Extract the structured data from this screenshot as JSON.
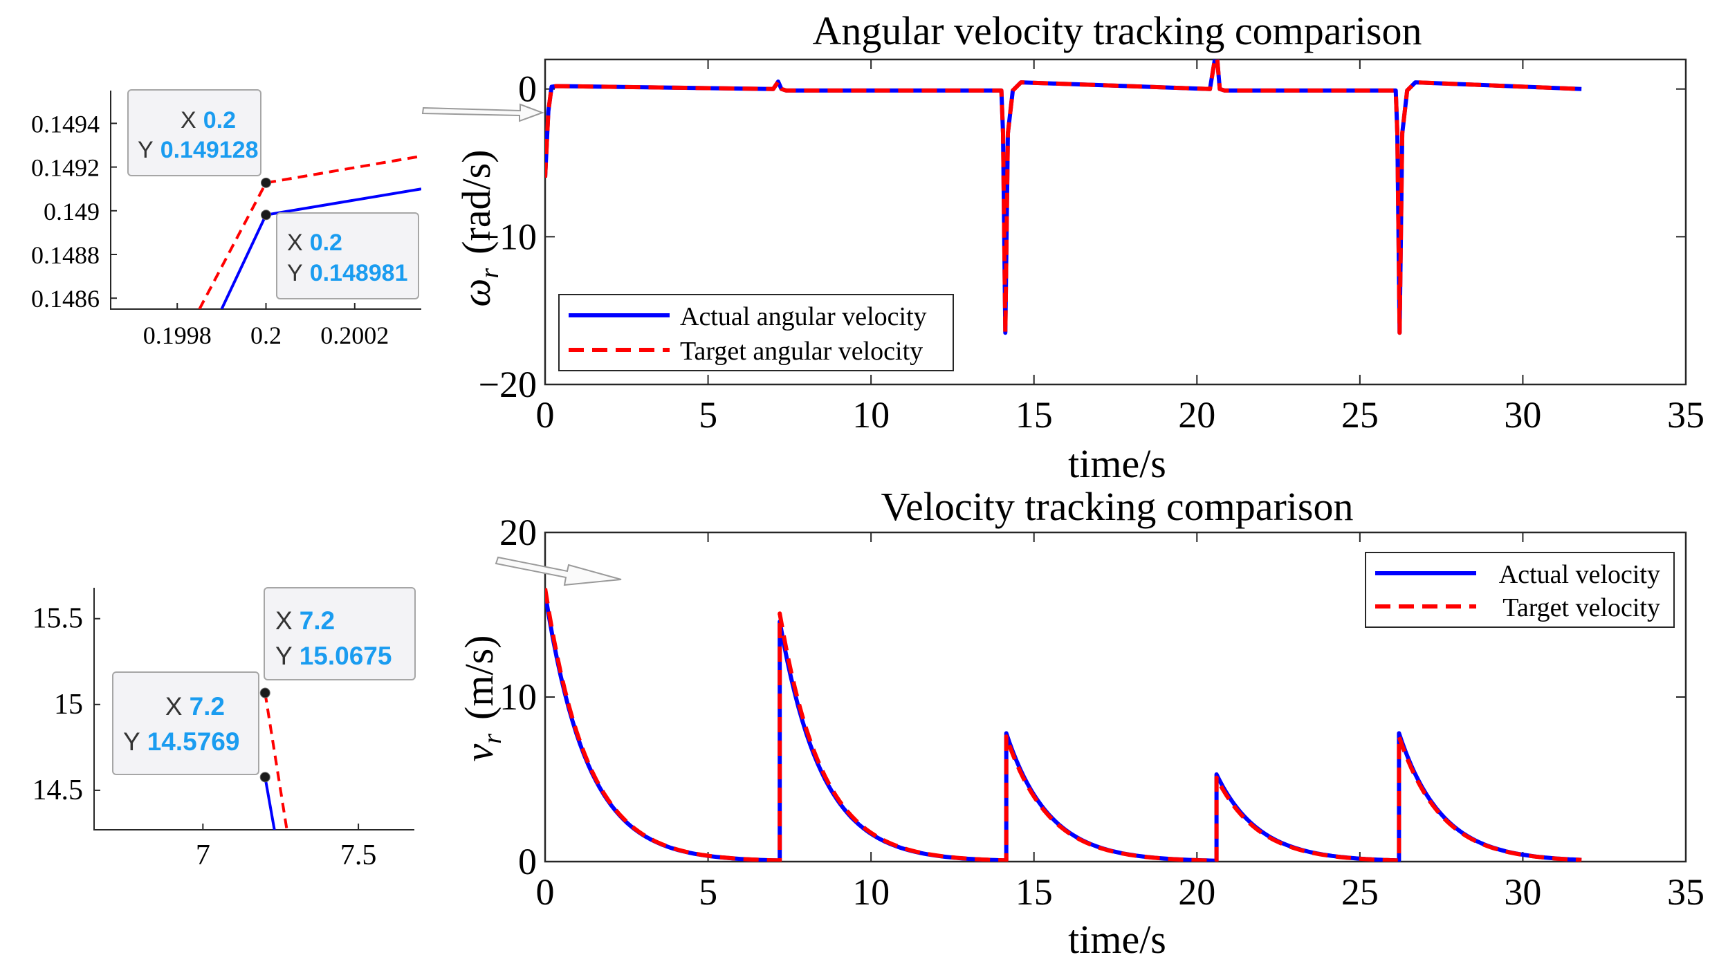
{
  "colors": {
    "actual": "#0000ff",
    "target": "#ff0000",
    "tip_value": "#1a9cf0",
    "axis": "#262626",
    "tip_bg": "#f3f3f6",
    "tip_border": "#a6a6a6"
  },
  "chart_data": [
    {
      "id": "angular",
      "type": "line",
      "title": "Angular velocity tracking comparison",
      "xlabel": "time/s",
      "ylabel_symbol": "ω",
      "ylabel_sub": "r",
      "ylabel_unit": "(rad/s)",
      "xlim": [
        0,
        35
      ],
      "ylim": [
        -20,
        2
      ],
      "xticks": [
        0,
        5,
        10,
        15,
        20,
        25,
        30,
        35
      ],
      "xtick_labels": [
        "0",
        "5",
        "10",
        "15",
        "20",
        "25",
        "30",
        "35"
      ],
      "yticks": [
        -20,
        -10,
        0
      ],
      "ytick_labels": [
        "−20",
        "−10",
        "0"
      ],
      "legend_position": "bottom-left",
      "series": [
        {
          "name": "Actual angular velocity",
          "style": "solid",
          "x": [
            0,
            0.1,
            0.2,
            0.35,
            7.0,
            7.15,
            7.25,
            7.4,
            14.0,
            14.05,
            14.12,
            14.2,
            14.35,
            14.6,
            20.4,
            20.55,
            20.62,
            20.7,
            20.85,
            26.1,
            26.15,
            26.22,
            26.3,
            26.45,
            26.7,
            31.8
          ],
          "y": [
            -6,
            -1.5,
            0.149,
            0.2,
            0.0,
            0.5,
            0.0,
            -0.1,
            -0.1,
            -3,
            -16.5,
            -3,
            -0.1,
            0.45,
            0.0,
            2.0,
            2.1,
            0.0,
            -0.1,
            -0.1,
            -3,
            -16.5,
            -3,
            -0.1,
            0.45,
            0.0
          ]
        },
        {
          "name": "Target angular velocity",
          "style": "dashed",
          "x": [
            0,
            0.1,
            0.2,
            0.35,
            7.0,
            7.15,
            7.25,
            7.4,
            14.0,
            14.05,
            14.12,
            14.2,
            14.35,
            14.6,
            20.4,
            20.55,
            20.62,
            20.7,
            20.85,
            26.1,
            26.15,
            26.22,
            26.3,
            26.45,
            26.7,
            31.8
          ],
          "y": [
            -6,
            -1.5,
            0.149,
            0.2,
            0.0,
            0.5,
            0.0,
            -0.1,
            -0.1,
            -3,
            -16.5,
            -3,
            -0.1,
            0.45,
            0.0,
            2.0,
            2.1,
            0.0,
            -0.1,
            -0.1,
            -3,
            -16.5,
            -3,
            -0.1,
            0.45,
            0.0
          ]
        }
      ]
    },
    {
      "id": "velocity",
      "type": "line",
      "title": "Velocity tracking comparison",
      "xlabel": "time/s",
      "ylabel_symbol": "v",
      "ylabel_sub": "r",
      "ylabel_unit": "(m/s)",
      "xlim": [
        0,
        35
      ],
      "ylim": [
        0,
        20
      ],
      "xticks": [
        0,
        5,
        10,
        15,
        20,
        25,
        30,
        35
      ],
      "xtick_labels": [
        "0",
        "5",
        "10",
        "15",
        "20",
        "25",
        "30",
        "35"
      ],
      "yticks": [
        0,
        10,
        20
      ],
      "ytick_labels": [
        "0",
        "10",
        "20"
      ],
      "legend_position": "top-right",
      "decay_tau": 1.3,
      "segments": [
        {
          "t0": 0,
          "t1": 7.2,
          "v_actual": 16.3,
          "v_target": 16.6
        },
        {
          "t0": 7.2,
          "t1": 14.15,
          "v_actual": 14.58,
          "v_target": 15.07
        },
        {
          "t0": 14.15,
          "t1": 20.6,
          "v_actual": 7.8,
          "v_target": 7.6
        },
        {
          "t0": 20.6,
          "t1": 26.2,
          "v_actual": 5.3,
          "v_target": 5.1
        },
        {
          "t0": 26.2,
          "t1": 31.8,
          "v_actual": 7.8,
          "v_target": 7.6
        }
      ],
      "series_names": [
        "Actual velocity",
        "Target velocity"
      ]
    },
    {
      "id": "zoom_angular",
      "type": "line",
      "xlim": [
        0.19965,
        0.20035
      ],
      "ylim": [
        0.14855,
        0.14955
      ],
      "xticks": [
        0.1998,
        0.2,
        0.2002
      ],
      "xtick_labels": [
        "0.1998",
        "0.2",
        "0.2002"
      ],
      "yticks": [
        0.1486,
        0.1488,
        0.149,
        0.1492,
        0.1494
      ],
      "ytick_labels": [
        "0.1486",
        "0.1488",
        "0.149",
        "0.1492",
        "0.1494"
      ],
      "series": [
        {
          "name": "Actual",
          "style": "solid",
          "x": [
            0.1999,
            0.2,
            0.20035
          ],
          "y": [
            0.14855,
            0.148981,
            0.1491
          ]
        },
        {
          "name": "Target",
          "style": "dashed",
          "x": [
            0.19985,
            0.2,
            0.20035
          ],
          "y": [
            0.14855,
            0.149128,
            0.14925
          ]
        }
      ],
      "datatips": [
        {
          "x_label": "X",
          "x_value": "0.2",
          "y_label": "Y",
          "y_value": "0.149128",
          "px": 0.2,
          "py": 0.149128
        },
        {
          "x_label": "X",
          "x_value": "0.2",
          "y_label": "Y",
          "y_value": "0.148981",
          "px": 0.2,
          "py": 0.148981
        }
      ]
    },
    {
      "id": "zoom_velocity",
      "type": "line",
      "xlim": [
        6.65,
        7.68
      ],
      "ylim": [
        14.27,
        15.68
      ],
      "xticks": [
        7,
        7.5
      ],
      "xtick_labels": [
        "7",
        "7.5"
      ],
      "yticks": [
        14.5,
        15,
        15.5
      ],
      "ytick_labels": [
        "14.5",
        "15",
        "15.5"
      ],
      "series": [
        {
          "name": "Actual",
          "style": "solid",
          "x": [
            7.2,
            7.23
          ],
          "y": [
            14.5769,
            14.27
          ]
        },
        {
          "name": "Target",
          "style": "dashed",
          "x": [
            7.2,
            7.27
          ],
          "y": [
            15.0675,
            14.27
          ]
        }
      ],
      "datatips": [
        {
          "x_label": "X",
          "x_value": "7.2",
          "y_label": "Y",
          "y_value": "15.0675",
          "px": 7.2,
          "py": 15.0675
        },
        {
          "x_label": "X",
          "x_value": "7.2",
          "y_label": "Y",
          "y_value": "14.5769",
          "px": 7.2,
          "py": 14.5769
        }
      ]
    }
  ]
}
